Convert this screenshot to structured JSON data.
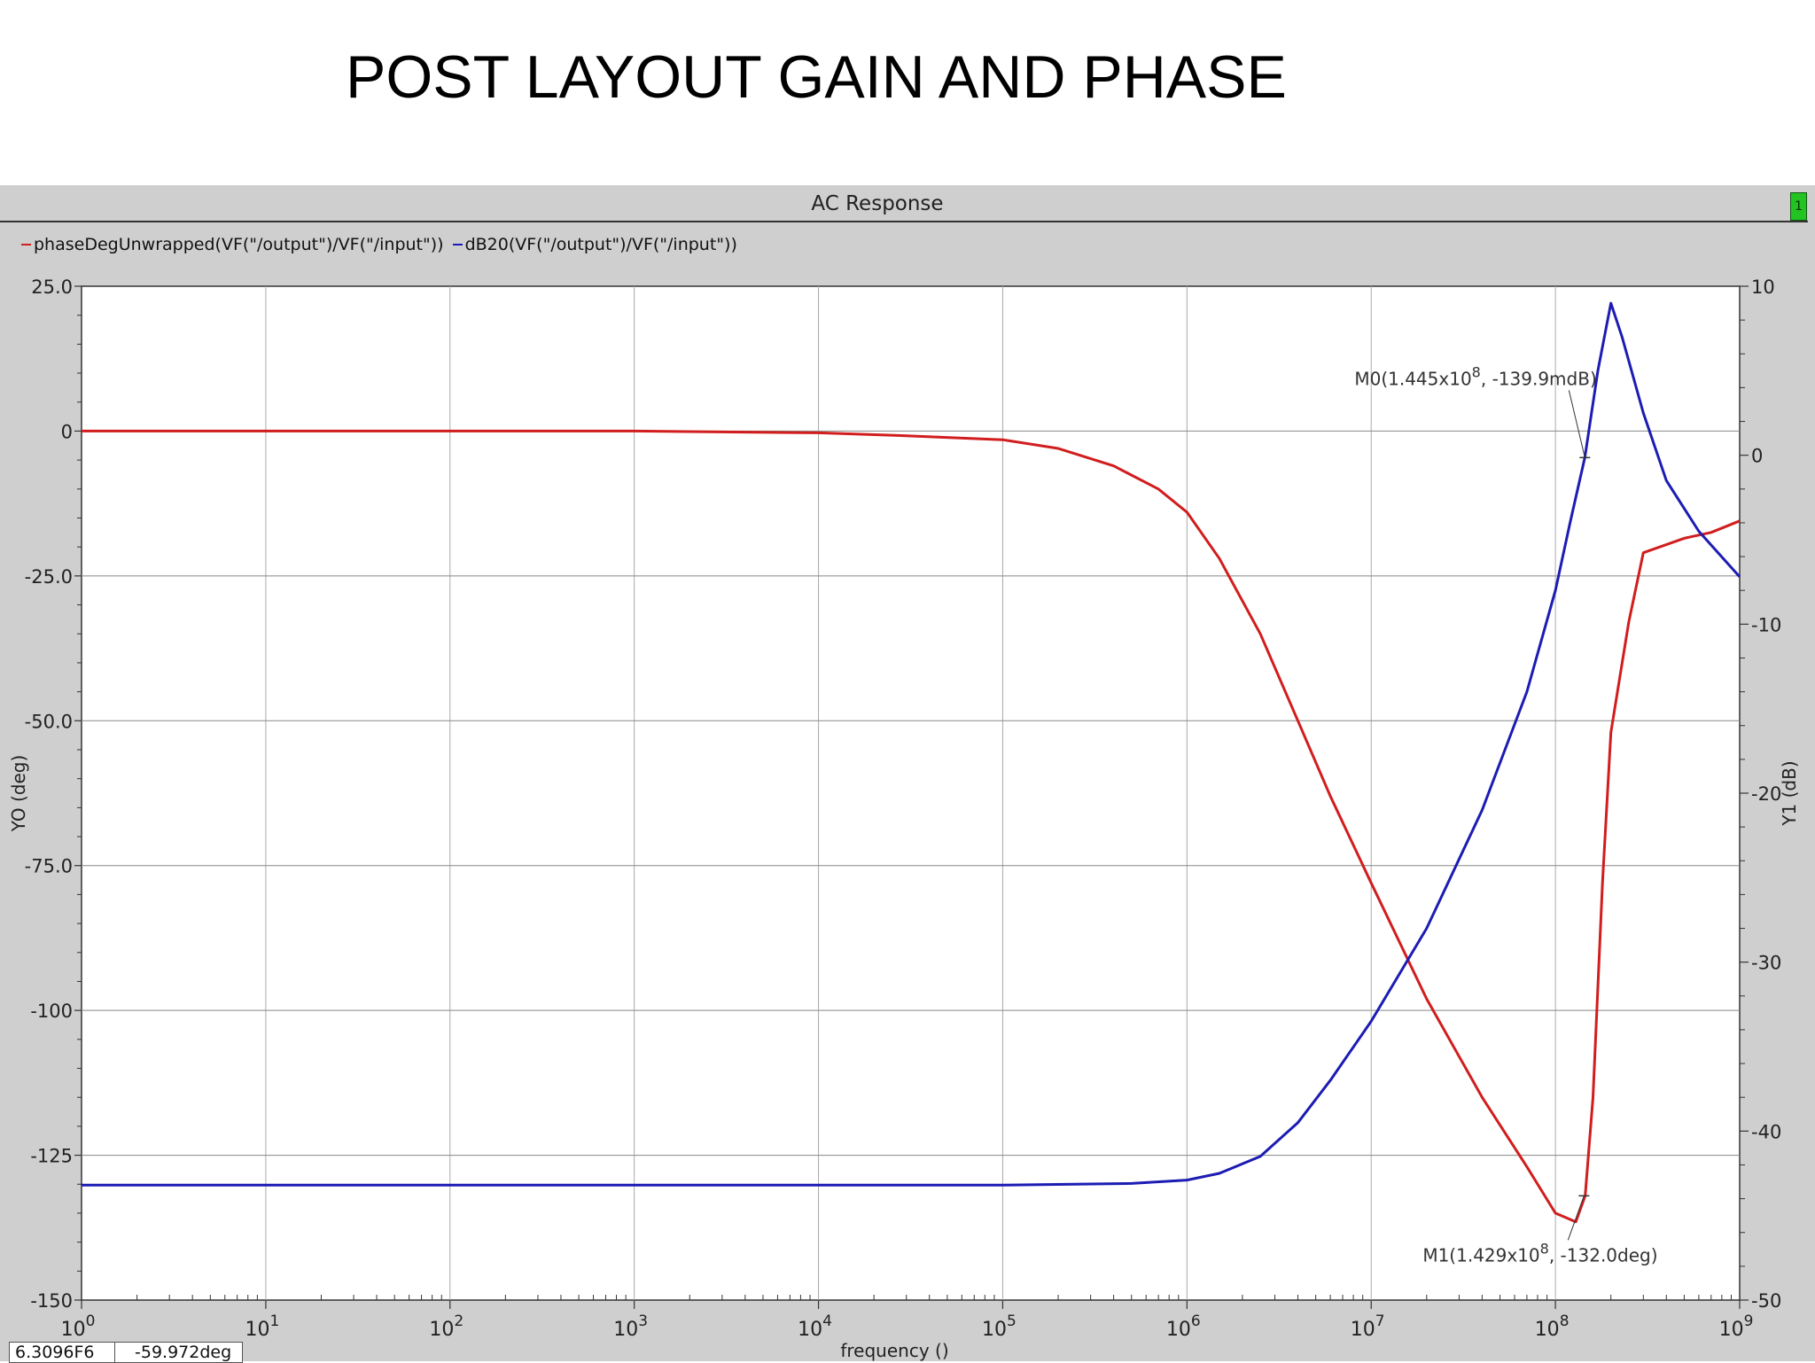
{
  "page": {
    "title": "POST LAYOUT GAIN AND PHASE"
  },
  "viewer": {
    "window_title": "AC Response",
    "subwindow_badge": "1"
  },
  "status": {
    "x_readout": "6.3096F6",
    "y_readout": "-59.972deg"
  },
  "colors": {
    "phase": "#d11d1d",
    "gain": "#1c1cb4",
    "background": "#cfcfcf",
    "plot_area": "#ffffff"
  },
  "chart_data": {
    "type": "line",
    "title": "AC Response",
    "xlabel": "frequency ()",
    "ylabel_left": "YO (deg)",
    "ylabel_right": "Y1 (dB)",
    "x_scale": "log",
    "xlim": [
      1,
      1000000000
    ],
    "ylim_left": [
      -150,
      25
    ],
    "ylim_right": [
      -50,
      10
    ],
    "grid": true,
    "x_ticks": [
      {
        "base": "10",
        "exp": "0"
      },
      {
        "base": "10",
        "exp": "1"
      },
      {
        "base": "10",
        "exp": "2"
      },
      {
        "base": "10",
        "exp": "3"
      },
      {
        "base": "10",
        "exp": "4"
      },
      {
        "base": "10",
        "exp": "5"
      },
      {
        "base": "10",
        "exp": "6"
      },
      {
        "base": "10",
        "exp": "7"
      },
      {
        "base": "10",
        "exp": "8"
      },
      {
        "base": "10",
        "exp": "9"
      }
    ],
    "y_ticks_left": [
      "25.0",
      "0",
      "-25.0",
      "-50.0",
      "-75.0",
      "-100",
      "-125",
      "-150"
    ],
    "y_ticks_right": [
      "10",
      "0",
      "-10",
      "-20",
      "-30",
      "-40",
      "-50"
    ],
    "series": [
      {
        "name": "phaseDegUnwrapped(VF(\"/output\")/VF(\"/input\"))",
        "axis": "left",
        "x": [
          1,
          10,
          100,
          1000,
          10000,
          30000,
          100000,
          200000,
          400000,
          700000,
          1000000,
          1500000,
          2500000,
          4000000,
          6000000,
          10000000,
          20000000,
          40000000,
          70000000,
          100000000,
          129000000,
          145000000,
          160000000,
          180000000,
          200000000,
          250000000,
          300000000,
          500000000,
          700000000,
          1000000000
        ],
        "values": [
          0,
          0,
          0,
          0,
          -0.3,
          -0.8,
          -1.5,
          -3,
          -6,
          -10,
          -14,
          -22,
          -35,
          -50,
          -63,
          -78,
          -98,
          -115,
          -127,
          -135,
          -136.5,
          -132,
          -115,
          -78,
          -52,
          -33,
          -21,
          -18.5,
          -17.5,
          -15.5
        ]
      },
      {
        "name": "dB20(VF(\"/output\")/VF(\"/input\"))",
        "axis": "right",
        "x": [
          1,
          10,
          100,
          1000,
          10000,
          100000,
          500000,
          1000000,
          1500000,
          2500000,
          4000000,
          6000000,
          10000000,
          20000000,
          40000000,
          70000000,
          100000000,
          120000000,
          144500000,
          170000000,
          200000000,
          230000000,
          300000000,
          400000000,
          600000000,
          1000000000
        ],
        "values": [
          -43.2,
          -43.2,
          -43.2,
          -43.2,
          -43.2,
          -43.2,
          -43.1,
          -42.9,
          -42.5,
          -41.5,
          -39.5,
          -37,
          -33.5,
          -28,
          -21,
          -14,
          -8,
          -4,
          -0.14,
          5,
          9,
          7,
          2.5,
          -1.5,
          -4.5,
          -7.2
        ]
      }
    ],
    "annotations": [
      {
        "name": "M0",
        "label_pre": "M0(1.445x10",
        "label_exp": "8",
        "label_post": ", -139.9mdB)",
        "x": 144500000,
        "y": -0.1399,
        "axis": "right"
      },
      {
        "name": "M1",
        "label_pre": "M1(1.429x10",
        "label_exp": "8",
        "label_post": ", -132.0deg)",
        "x": 142900000,
        "y": -132.0,
        "axis": "left"
      }
    ]
  }
}
